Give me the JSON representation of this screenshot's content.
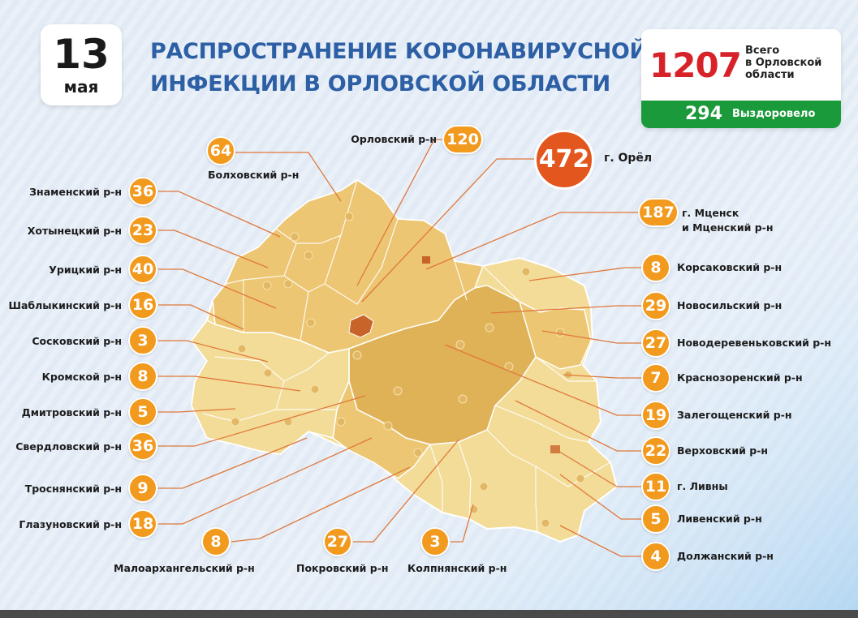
{
  "header": {
    "date_day": "13",
    "date_month": "мая",
    "title_line1": "РАСПРОСТРАНЕНИЕ КОРОНАВИРУСНОЙ",
    "title_line2": "ИНФЕКЦИИ В ОРЛОВСКОЙ ОБЛАСТИ"
  },
  "totals": {
    "total_value": "1207",
    "total_label_1": "Всего",
    "total_label_2": "в Орловской",
    "total_label_3": "области",
    "recovered_value": "294",
    "recovered_label": "Выздоровело"
  },
  "colors": {
    "background": "#e7eef7",
    "title": "#2d5fa5",
    "total": "#d8222a",
    "recovered_bg": "#1b9a3b",
    "badge": "#f29a1e",
    "badge_big": "#e3561d",
    "map_light": "#f3dc98",
    "map_mid": "#ecc672",
    "map_dark": "#e0b258",
    "city": "#c8642a"
  },
  "districts": [
    {
      "id": "orel-city",
      "name": "г. Орёл",
      "cases": "472"
    },
    {
      "id": "orlovsky",
      "name": "Орловский р-н",
      "cases": "120"
    },
    {
      "id": "bolkhovsky",
      "name": "Болховский р-н",
      "cases": "64"
    },
    {
      "id": "mtsensk",
      "name_line1": "г. Мценск",
      "name_line2": "и Мценский р-н",
      "cases": "187"
    },
    {
      "id": "znamensky",
      "name": "Знаменский р-н",
      "cases": "36"
    },
    {
      "id": "khotynetsky",
      "name": "Хотынецкий р-н",
      "cases": "23"
    },
    {
      "id": "uritsky",
      "name": "Урицкий р-н",
      "cases": "40"
    },
    {
      "id": "shablykinsky",
      "name": "Шаблыкинский р-н",
      "cases": "16"
    },
    {
      "id": "soskovsky",
      "name": "Сосковский р-н",
      "cases": "3"
    },
    {
      "id": "kromskoy",
      "name": "Кромской р-н",
      "cases": "8"
    },
    {
      "id": "dmitrovsky",
      "name": "Дмитровский р-н",
      "cases": "5"
    },
    {
      "id": "sverdlovsky",
      "name": "Свердловский р-н",
      "cases": "36"
    },
    {
      "id": "trosnyansky",
      "name": "Троснянский р-н",
      "cases": "9"
    },
    {
      "id": "glazunovsky",
      "name": "Глазуновский р-н",
      "cases": "18"
    },
    {
      "id": "maloarkhangelsky",
      "name": "Малоархангельский р-н",
      "cases": "8"
    },
    {
      "id": "pokrovsky",
      "name": "Покровский р-н",
      "cases": "27"
    },
    {
      "id": "kolpnyansky",
      "name": "Колпнянский р-н",
      "cases": "3"
    },
    {
      "id": "korsakovsky",
      "name": "Корсаковский р-н",
      "cases": "8"
    },
    {
      "id": "novosilsky",
      "name": "Новосильский р-н",
      "cases": "29"
    },
    {
      "id": "novoderevenkovsky",
      "name": "Новодеревеньковский р-н",
      "cases": "27"
    },
    {
      "id": "krasnozorensky",
      "name": "Краснозоренский р-н",
      "cases": "7"
    },
    {
      "id": "zaleghoshchensky",
      "name": "Залегощенский р-н",
      "cases": "19"
    },
    {
      "id": "verkhovsky",
      "name": "Верховский р-н",
      "cases": "22"
    },
    {
      "id": "livny-city",
      "name": "г. Ливны",
      "cases": "11"
    },
    {
      "id": "livensky",
      "name": "Ливенский р-н",
      "cases": "5"
    },
    {
      "id": "dolzhansky",
      "name": "Должанский р-н",
      "cases": "4"
    }
  ]
}
